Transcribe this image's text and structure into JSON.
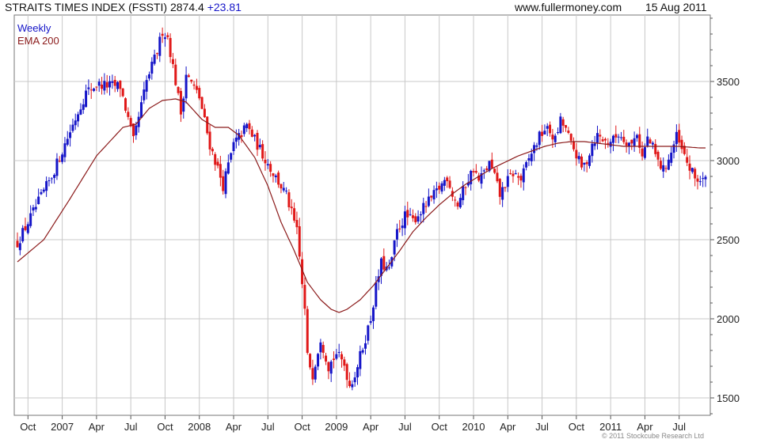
{
  "header": {
    "title": "STRAITS TIMES INDEX (FSSTI) 2874.4",
    "change": "+23.81",
    "website": "www.fullermoney.com",
    "date": "15 Aug 2011"
  },
  "footer": {
    "copyright": "© 2011 Stockcube Research Ltd"
  },
  "colors": {
    "up": "#1515c8",
    "down": "#e01818",
    "ema": "#8b1a1a",
    "grid": "#c8c8c8",
    "axis": "#555555"
  },
  "chart_data": {
    "type": "candlestick",
    "title": "STRAITS TIMES INDEX (FSSTI)",
    "grid": true,
    "legend": {
      "position": "top-left",
      "entries": [
        "Weekly",
        "EMA 200"
      ]
    },
    "y_axis": {
      "side": "right",
      "ticks": [
        1500,
        2000,
        2500,
        3000,
        3500
      ],
      "ylim": [
        1390,
        3920
      ]
    },
    "x_axis": {
      "ticks": [
        "Oct",
        "2007",
        "Apr",
        "Jul",
        "Oct",
        "2008",
        "Apr",
        "Jul",
        "Oct",
        "2009",
        "Apr",
        "Jul",
        "Oct",
        "2010",
        "Apr",
        "Jul",
        "Oct",
        "2011",
        "Apr",
        "Jul"
      ],
      "tick_week": [
        4,
        17,
        30,
        43,
        56,
        69,
        82,
        95,
        108,
        121,
        134,
        147,
        160,
        173,
        186,
        199,
        212,
        225,
        238,
        251
      ],
      "n_weeks": 262
    },
    "series": [
      {
        "name": "Weekly",
        "style": "candles",
        "keypoints_close": [
          [
            0,
            2480
          ],
          [
            13,
            2900
          ],
          [
            26,
            3430
          ],
          [
            30,
            3480
          ],
          [
            39,
            3470
          ],
          [
            44,
            3120
          ],
          [
            49,
            3500
          ],
          [
            53,
            3690
          ],
          [
            55,
            3820
          ],
          [
            57,
            3780
          ],
          [
            60,
            3500
          ],
          [
            62,
            3300
          ],
          [
            64,
            3550
          ],
          [
            69,
            3400
          ],
          [
            73,
            3100
          ],
          [
            76,
            2950
          ],
          [
            78,
            2840
          ],
          [
            82,
            3100
          ],
          [
            87,
            3220
          ],
          [
            91,
            3100
          ],
          [
            96,
            2950
          ],
          [
            102,
            2780
          ],
          [
            106,
            2550
          ],
          [
            109,
            2050
          ],
          [
            110,
            1760
          ],
          [
            112,
            1650
          ],
          [
            115,
            1880
          ],
          [
            118,
            1700
          ],
          [
            121,
            1780
          ],
          [
            124,
            1710
          ],
          [
            126,
            1580
          ],
          [
            128,
            1650
          ],
          [
            131,
            1820
          ],
          [
            134,
            2000
          ],
          [
            136,
            2200
          ],
          [
            138,
            2350
          ],
          [
            141,
            2300
          ],
          [
            144,
            2550
          ],
          [
            147,
            2650
          ],
          [
            150,
            2620
          ],
          [
            154,
            2700
          ],
          [
            158,
            2780
          ],
          [
            161,
            2850
          ],
          [
            163,
            2900
          ],
          [
            165,
            2790
          ],
          [
            167,
            2720
          ],
          [
            170,
            2850
          ],
          [
            173,
            2950
          ],
          [
            175,
            2870
          ],
          [
            179,
            2980
          ],
          [
            181,
            2900
          ],
          [
            183,
            2780
          ],
          [
            185,
            2850
          ],
          [
            188,
            2920
          ],
          [
            191,
            2880
          ],
          [
            195,
            3050
          ],
          [
            198,
            3150
          ],
          [
            200,
            3200
          ],
          [
            202,
            3180
          ],
          [
            204,
            3130
          ],
          [
            206,
            3250
          ],
          [
            208,
            3200
          ],
          [
            210,
            3100
          ],
          [
            212,
            3040
          ],
          [
            214,
            2950
          ],
          [
            216,
            3000
          ],
          [
            218,
            3110
          ],
          [
            220,
            3160
          ],
          [
            223,
            3120
          ],
          [
            226,
            3130
          ],
          [
            228,
            3170
          ],
          [
            230,
            3140
          ],
          [
            233,
            3100
          ],
          [
            235,
            3180
          ],
          [
            237,
            3020
          ],
          [
            239,
            3140
          ],
          [
            241,
            3080
          ],
          [
            243,
            2990
          ],
          [
            245,
            2940
          ],
          [
            248,
            3050
          ],
          [
            250,
            3150
          ],
          [
            252,
            3060
          ],
          [
            255,
            2950
          ],
          [
            257,
            2890
          ],
          [
            259,
            2874.4
          ]
        ]
      },
      {
        "name": "EMA 200",
        "style": "line",
        "keypoints": [
          [
            0,
            2360
          ],
          [
            10,
            2500
          ],
          [
            20,
            2760
          ],
          [
            30,
            3030
          ],
          [
            40,
            3210
          ],
          [
            45,
            3230
          ],
          [
            50,
            3330
          ],
          [
            55,
            3380
          ],
          [
            60,
            3390
          ],
          [
            64,
            3370
          ],
          [
            70,
            3260
          ],
          [
            75,
            3210
          ],
          [
            80,
            3210
          ],
          [
            84,
            3160
          ],
          [
            90,
            3020
          ],
          [
            95,
            2840
          ],
          [
            100,
            2610
          ],
          [
            105,
            2430
          ],
          [
            110,
            2230
          ],
          [
            115,
            2120
          ],
          [
            119,
            2060
          ],
          [
            122,
            2040
          ],
          [
            125,
            2060
          ],
          [
            130,
            2120
          ],
          [
            135,
            2210
          ],
          [
            140,
            2320
          ],
          [
            145,
            2430
          ],
          [
            150,
            2550
          ],
          [
            155,
            2640
          ],
          [
            160,
            2720
          ],
          [
            165,
            2790
          ],
          [
            170,
            2850
          ],
          [
            175,
            2900
          ],
          [
            180,
            2950
          ],
          [
            185,
            2990
          ],
          [
            190,
            3030
          ],
          [
            195,
            3060
          ],
          [
            200,
            3090
          ],
          [
            205,
            3110
          ],
          [
            210,
            3120
          ],
          [
            215,
            3120
          ],
          [
            220,
            3110
          ],
          [
            225,
            3100
          ],
          [
            230,
            3090
          ],
          [
            235,
            3090
          ],
          [
            240,
            3090
          ],
          [
            245,
            3090
          ],
          [
            250,
            3090
          ],
          [
            255,
            3085
          ],
          [
            259,
            3080
          ]
        ]
      }
    ]
  }
}
